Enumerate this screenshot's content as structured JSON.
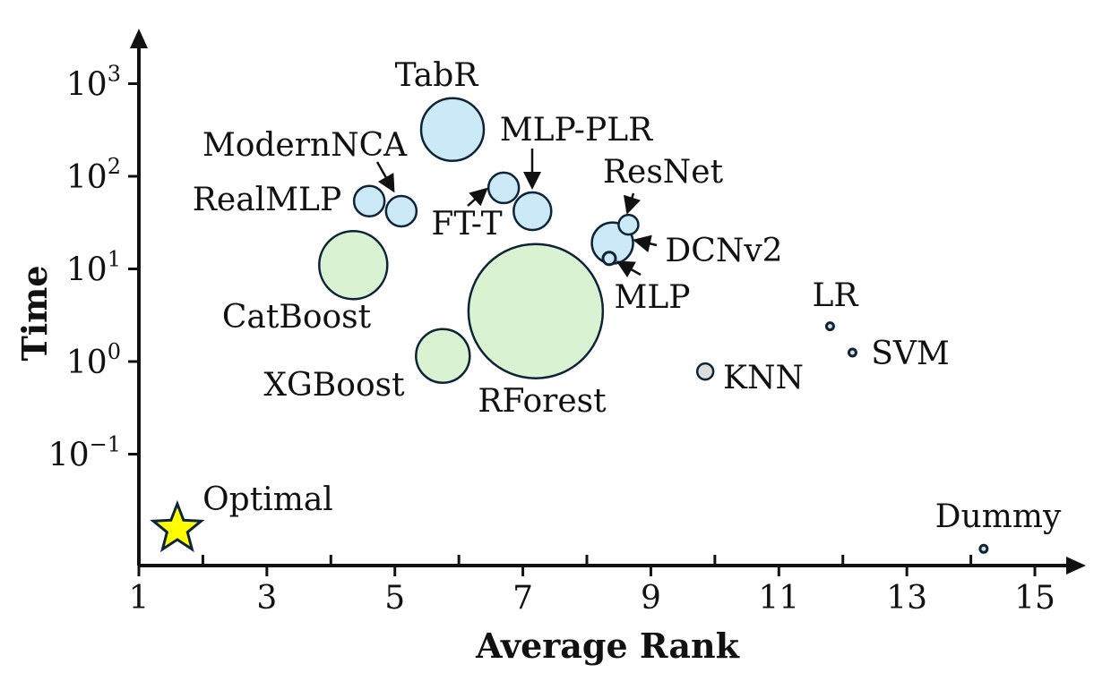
{
  "chart_data": {
    "type": "scatter",
    "xlabel": "Average Rank",
    "ylabel": "Time",
    "xlim": [
      1,
      16
    ],
    "ylog": true,
    "ylim_log10": [
      -2.25,
      3.6
    ],
    "x_ticks": [
      {
        "value": 1,
        "label": "1"
      },
      {
        "value": 3,
        "label": "3"
      },
      {
        "value": 5,
        "label": "5"
      },
      {
        "value": 7,
        "label": "7"
      },
      {
        "value": 9,
        "label": "9"
      },
      {
        "value": 11,
        "label": "11"
      },
      {
        "value": 13,
        "label": "13"
      },
      {
        "value": 15,
        "label": "15"
      }
    ],
    "x_minor_ticks": [
      2,
      4,
      6,
      8,
      10,
      12,
      14
    ],
    "y_ticks": [
      {
        "exp": -1,
        "base": "10",
        "sup": "−1"
      },
      {
        "exp": 0,
        "base": "10",
        "sup": "0"
      },
      {
        "exp": 1,
        "base": "10",
        "sup": "1"
      },
      {
        "exp": 2,
        "base": "10",
        "sup": "2"
      },
      {
        "exp": 3,
        "base": "10",
        "sup": "3"
      }
    ],
    "grid": false,
    "points": [
      {
        "name": "TabR",
        "x": 5.9,
        "y": 320,
        "size": 1.0,
        "group": "deep",
        "label_pos": "top"
      },
      {
        "name": "ModernNCA",
        "x": 5.1,
        "y": 42,
        "size": 0.5,
        "group": "deep",
        "label_pos": "arrow",
        "arrow": true
      },
      {
        "name": "RealMLP",
        "x": 4.6,
        "y": 54,
        "size": 0.5,
        "group": "deep",
        "label_pos": "left"
      },
      {
        "name": "FT-T",
        "x": 6.7,
        "y": 75,
        "size": 0.5,
        "group": "deep",
        "label_pos": "arrow",
        "arrow": true
      },
      {
        "name": "MLP-PLR",
        "x": 7.15,
        "y": 42,
        "size": 0.6,
        "group": "deep",
        "label_pos": "arrow",
        "arrow": true
      },
      {
        "name": "ResNet",
        "x": 8.65,
        "y": 30,
        "size": 0.3,
        "group": "deep",
        "label_pos": "arrow",
        "arrow": true
      },
      {
        "name": "DCNv2",
        "x": 8.4,
        "y": 19,
        "size": 0.65,
        "group": "deep",
        "label_pos": "arrow",
        "arrow": true
      },
      {
        "name": "MLP",
        "x": 8.35,
        "y": 13,
        "size": 0.18,
        "group": "deep",
        "label_pos": "arrow",
        "arrow": true
      },
      {
        "name": "CatBoost",
        "x": 4.35,
        "y": 11,
        "size": 1.05,
        "group": "tree",
        "label_pos": "bottom"
      },
      {
        "name": "XGBoost",
        "x": 5.75,
        "y": 1.15,
        "size": 0.8,
        "group": "tree",
        "label_pos": "left"
      },
      {
        "name": "RForest",
        "x": 7.2,
        "y": 3.5,
        "size": 2.05,
        "group": "tree",
        "label_pos": "bottom"
      },
      {
        "name": "KNN",
        "x": 9.85,
        "y": 0.78,
        "size": 0.22,
        "group": "classic",
        "label_pos": "right"
      },
      {
        "name": "LR",
        "x": 11.8,
        "y": 2.4,
        "size": 0.1,
        "group": "classic",
        "label_pos": "top"
      },
      {
        "name": "SVM",
        "x": 12.15,
        "y": 1.25,
        "size": 0.1,
        "group": "classic",
        "label_pos": "right"
      },
      {
        "name": "Dummy",
        "x": 14.2,
        "y": 0.0095,
        "size": 0.1,
        "group": "classic",
        "label_pos": "top"
      }
    ],
    "optimal": {
      "name": "Optimal",
      "x": 1.6,
      "y": 0.014,
      "marker": "star"
    },
    "colors": {
      "deep": "#cce9f7",
      "tree": "#d9f2d2",
      "classic": "#dcdcdc",
      "edge": "#0d2436",
      "star": "#ffff00",
      "axis": "#111111"
    }
  }
}
